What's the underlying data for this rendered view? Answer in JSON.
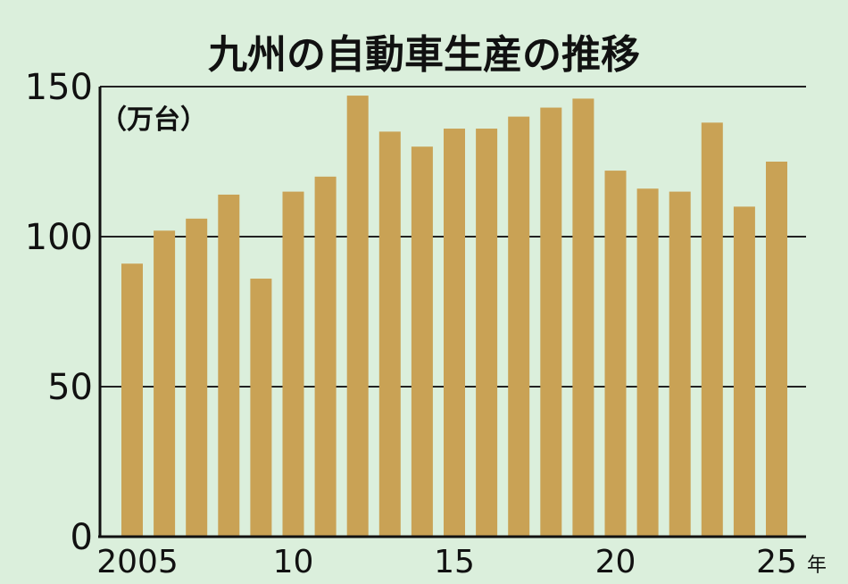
{
  "chart_data": {
    "type": "bar",
    "title": "九州の自動車生産の推移",
    "unit_label": "（万台）",
    "x_unit": "年",
    "ylim": [
      0,
      150
    ],
    "yticks": [
      "0",
      "50",
      "100",
      "150"
    ],
    "grid": true,
    "categories": [
      "2005",
      "2006",
      "2007",
      "2008",
      "2009",
      "2010",
      "2011",
      "2012",
      "2013",
      "2014",
      "2015",
      "2016",
      "2017",
      "2018",
      "2019",
      "2020",
      "2021",
      "2022",
      "2023",
      "2024",
      "2025"
    ],
    "xtick_labels": [
      "2005",
      "10",
      "15",
      "20",
      "25"
    ],
    "xtick_positions": [
      "2005",
      "2010",
      "2015",
      "2020",
      "2025"
    ],
    "values": [
      91,
      102,
      106,
      114,
      86,
      115,
      120,
      147,
      135,
      130,
      136,
      136,
      140,
      143,
      146,
      122,
      116,
      115,
      138,
      110,
      125
    ],
    "bar_color": "#c9a255",
    "background_color": "#dbefdc"
  }
}
